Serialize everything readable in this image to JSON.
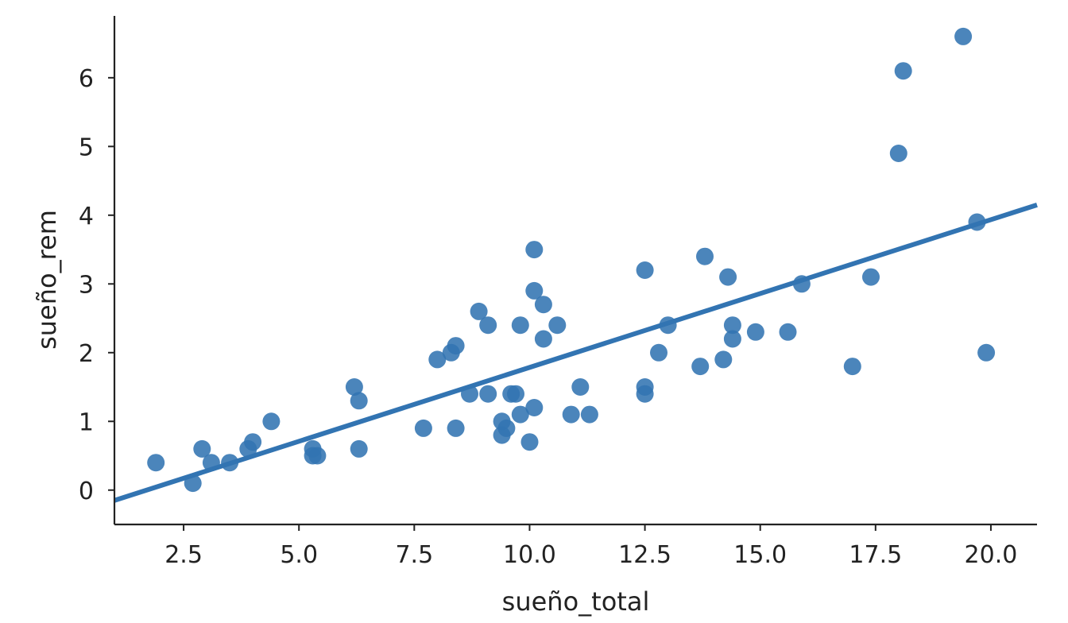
{
  "chart_data": {
    "type": "scatter",
    "xlabel": "sueño_total",
    "ylabel": "sueño_rem",
    "xlim": [
      1.0,
      21.0
    ],
    "ylim": [
      -0.5,
      6.9
    ],
    "xticks": [
      2.5,
      5.0,
      7.5,
      10.0,
      12.5,
      15.0,
      17.5,
      20.0
    ],
    "xtick_labels": [
      "2.5",
      "5.0",
      "7.5",
      "10.0",
      "12.5",
      "15.0",
      "17.5",
      "20.0"
    ],
    "yticks": [
      0,
      1,
      2,
      3,
      4,
      5,
      6
    ],
    "ytick_labels": [
      "0",
      "1",
      "2",
      "3",
      "4",
      "5",
      "6"
    ],
    "grid": false,
    "color": "#3274b2",
    "regression_line": {
      "x": [
        1.0,
        21.0
      ],
      "y": [
        -0.15,
        4.15
      ]
    },
    "points": [
      {
        "x": 1.9,
        "y": 0.4
      },
      {
        "x": 2.7,
        "y": 0.1
      },
      {
        "x": 2.9,
        "y": 0.6
      },
      {
        "x": 3.1,
        "y": 0.4
      },
      {
        "x": 3.5,
        "y": 0.4
      },
      {
        "x": 3.9,
        "y": 0.6
      },
      {
        "x": 4.0,
        "y": 0.7
      },
      {
        "x": 4.4,
        "y": 1.0
      },
      {
        "x": 5.3,
        "y": 0.6
      },
      {
        "x": 5.3,
        "y": 0.5
      },
      {
        "x": 5.4,
        "y": 0.5
      },
      {
        "x": 6.2,
        "y": 1.5
      },
      {
        "x": 6.3,
        "y": 1.3
      },
      {
        "x": 6.3,
        "y": 0.6
      },
      {
        "x": 7.7,
        "y": 0.9
      },
      {
        "x": 8.0,
        "y": 1.9
      },
      {
        "x": 8.3,
        "y": 2.0
      },
      {
        "x": 8.4,
        "y": 2.1
      },
      {
        "x": 8.4,
        "y": 0.9
      },
      {
        "x": 8.7,
        "y": 1.4
      },
      {
        "x": 8.9,
        "y": 2.6
      },
      {
        "x": 9.1,
        "y": 2.4
      },
      {
        "x": 9.1,
        "y": 1.4
      },
      {
        "x": 9.4,
        "y": 1.0
      },
      {
        "x": 9.4,
        "y": 0.8
      },
      {
        "x": 9.5,
        "y": 0.9
      },
      {
        "x": 9.6,
        "y": 1.4
      },
      {
        "x": 9.7,
        "y": 1.4
      },
      {
        "x": 9.8,
        "y": 2.4
      },
      {
        "x": 9.8,
        "y": 1.1
      },
      {
        "x": 10.0,
        "y": 0.7
      },
      {
        "x": 10.1,
        "y": 3.5
      },
      {
        "x": 10.1,
        "y": 2.9
      },
      {
        "x": 10.1,
        "y": 1.2
      },
      {
        "x": 10.3,
        "y": 2.7
      },
      {
        "x": 10.3,
        "y": 2.2
      },
      {
        "x": 10.6,
        "y": 2.4
      },
      {
        "x": 10.9,
        "y": 1.1
      },
      {
        "x": 11.1,
        "y": 1.5
      },
      {
        "x": 11.3,
        "y": 1.1
      },
      {
        "x": 12.5,
        "y": 3.2
      },
      {
        "x": 12.5,
        "y": 1.5
      },
      {
        "x": 12.5,
        "y": 1.4
      },
      {
        "x": 12.8,
        "y": 2.0
      },
      {
        "x": 13.0,
        "y": 2.4
      },
      {
        "x": 13.7,
        "y": 1.8
      },
      {
        "x": 13.8,
        "y": 3.4
      },
      {
        "x": 14.2,
        "y": 1.9
      },
      {
        "x": 14.3,
        "y": 3.1
      },
      {
        "x": 14.4,
        "y": 2.4
      },
      {
        "x": 14.4,
        "y": 2.2
      },
      {
        "x": 14.9,
        "y": 2.3
      },
      {
        "x": 15.6,
        "y": 2.3
      },
      {
        "x": 15.9,
        "y": 3.0
      },
      {
        "x": 17.0,
        "y": 1.8
      },
      {
        "x": 17.4,
        "y": 3.1
      },
      {
        "x": 18.0,
        "y": 4.9
      },
      {
        "x": 18.1,
        "y": 6.1
      },
      {
        "x": 19.4,
        "y": 6.6
      },
      {
        "x": 19.7,
        "y": 3.9
      },
      {
        "x": 19.9,
        "y": 2.0
      }
    ]
  }
}
